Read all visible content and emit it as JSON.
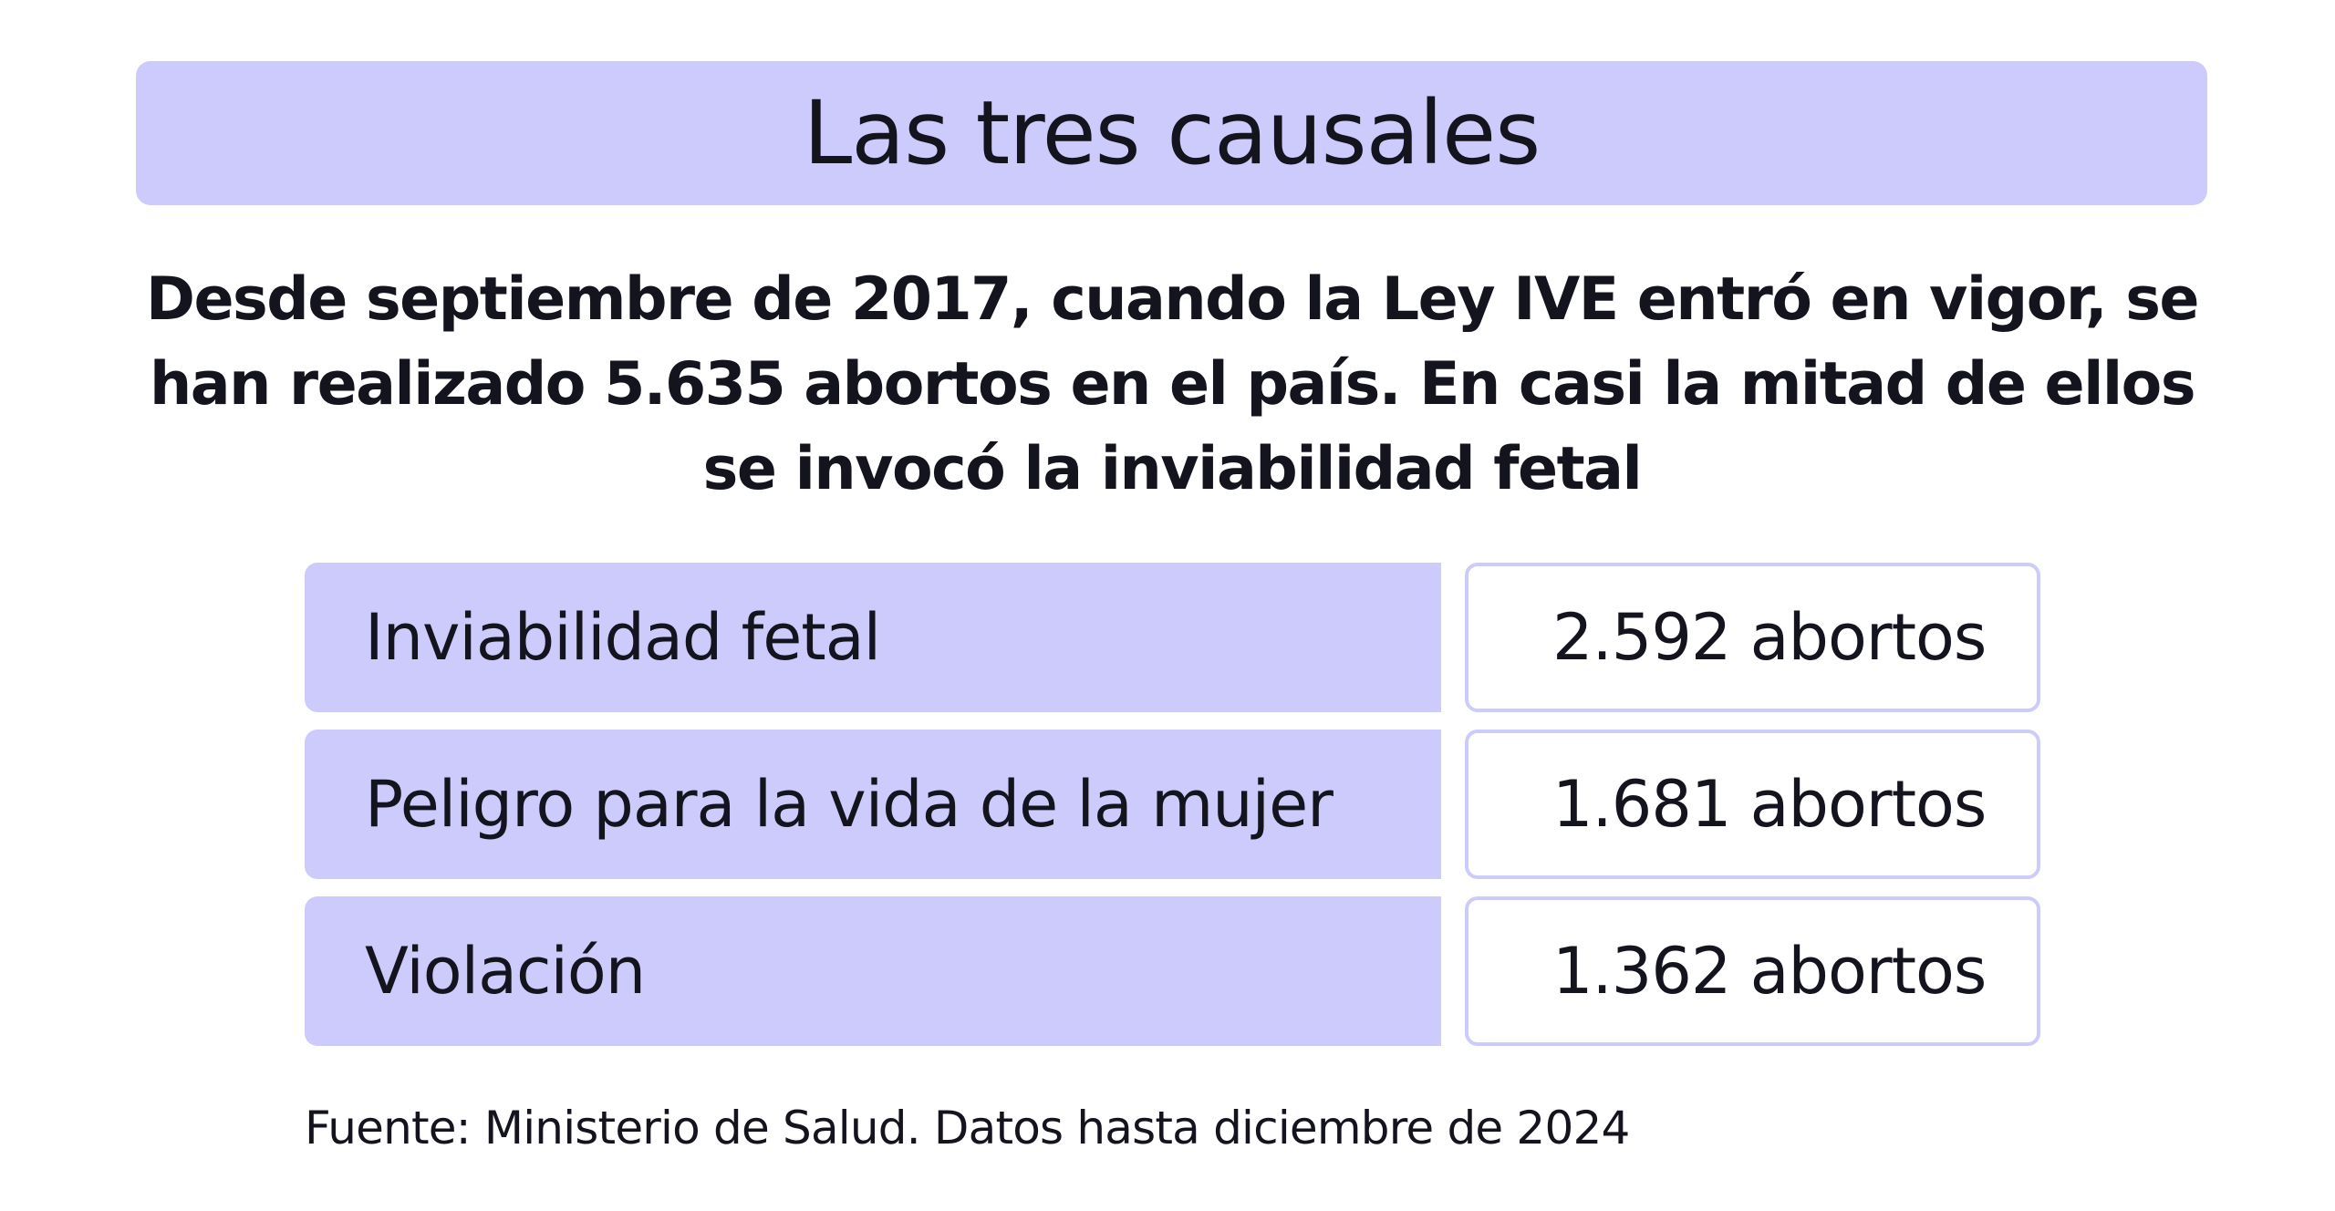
{
  "title": "Las tres causales",
  "summary": "Desde septiembre de 2017, cuando la Ley IVE entró en vigor, se han realizado 5.635 abortos en el país. En casi la mitad de ellos se invocó la inviabilidad fetal",
  "rows": [
    {
      "label": "Inviabilidad fetal",
      "value": "2.592 abortos"
    },
    {
      "label": "Peligro para la vida de la mujer",
      "value": "1.681 abortos"
    },
    {
      "label": "Violación",
      "value": "1.362 abortos"
    }
  ],
  "source": "Fuente: Ministerio de Salud. Datos hasta diciembre de 2024",
  "colors": {
    "accent": "#cccbfb",
    "text": "#14141f",
    "background": "#ffffff"
  }
}
